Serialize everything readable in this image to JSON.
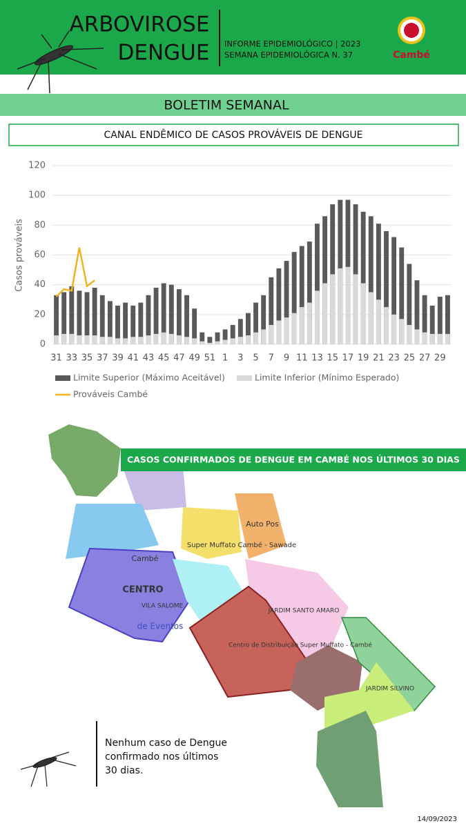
{
  "header": {
    "title_line1": "ARBOVIROSE",
    "title_line2": "DENGUE",
    "info_line1": "INFORME EPIDEMIOLÓGICO | 2023",
    "info_line2": "SEMANA EPIDEMIOLÓGICA  N. 37",
    "logo": "Cambé"
  },
  "banner": "BOLETIM SEMANAL",
  "chart_data": {
    "type": "bar",
    "title": "CANAL ENDÊMICO DE CASOS PROVÁVEIS DE DENGUE",
    "y_label": "Casos prováveis",
    "categories": [
      "31",
      null,
      "33",
      null,
      "35",
      null,
      "37",
      null,
      "39",
      null,
      "41",
      null,
      "43",
      null,
      "45",
      null,
      "47",
      null,
      "49",
      null,
      "51",
      null,
      "1",
      null,
      "3",
      null,
      "5",
      null,
      "7",
      null,
      "9",
      null,
      "11",
      null,
      "13",
      null,
      "15",
      null,
      "17",
      null,
      "19",
      null,
      "21",
      null,
      "23",
      null,
      "25",
      null,
      "27",
      null,
      "29",
      null
    ],
    "series": [
      {
        "name": "Limite Superior (Máximo Aceitável)",
        "type": "bar",
        "color": "#595959",
        "values": [
          33,
          35,
          39,
          36,
          35,
          38,
          33,
          29,
          26,
          28,
          26,
          28,
          33,
          38,
          41,
          40,
          37,
          33,
          24,
          8,
          5,
          8,
          10,
          13,
          17,
          21,
          28,
          33,
          45,
          51,
          56,
          62,
          66,
          69,
          81,
          86,
          94,
          97,
          97,
          94,
          89,
          86,
          81,
          76,
          72,
          65,
          54,
          43,
          33,
          26,
          32,
          33
        ]
      },
      {
        "name": "Limite Inferior (Mínimo Esperado)",
        "type": "bar",
        "color": "#d9d9d9",
        "values": [
          6,
          7,
          7,
          6,
          6,
          6,
          5,
          5,
          4,
          4,
          5,
          5,
          6,
          7,
          8,
          7,
          6,
          5,
          4,
          2,
          1,
          2,
          3,
          4,
          5,
          6,
          8,
          10,
          13,
          16,
          18,
          21,
          25,
          28,
          36,
          41,
          47,
          51,
          52,
          47,
          41,
          35,
          30,
          25,
          20,
          17,
          13,
          10,
          8,
          7,
          7,
          7
        ]
      },
      {
        "name": "Prováveis Cambé",
        "type": "line",
        "color": "#f0b323",
        "values": [
          32,
          37,
          36,
          65,
          39,
          43,
          null,
          null,
          null,
          null,
          null,
          null,
          null,
          null,
          null,
          null,
          null,
          null,
          null,
          null,
          null,
          null,
          null,
          null,
          null,
          null,
          null,
          null,
          null,
          null,
          null,
          null,
          null,
          null,
          null,
          null,
          null,
          null,
          null,
          null,
          null,
          null,
          null,
          null,
          null,
          null,
          null,
          null,
          null,
          null,
          null,
          null
        ]
      }
    ],
    "ylim": [
      0,
      120
    ],
    "yticks": [
      0,
      20,
      40,
      60,
      80,
      100,
      120
    ],
    "grid": true,
    "legend": "bottom"
  },
  "map": {
    "title": "CASOS CONFIRMADOS DE DENGUE EM CAMBÉ NOS ÚLTIMOS 30 DIAS",
    "labels": [
      "Cambé",
      "CENTRO",
      "VILA SALOME",
      "de Eventos",
      "Super Muffato Cambé - Sawade",
      "Auto Pos",
      "JARDIM SANTO AMARO",
      "Centro de Distribuição Super Muffato - Cambé",
      "JARDIM SILVINO"
    ]
  },
  "note": {
    "line1": "Nenhum caso de Dengue",
    "line2": "confirmado nos últimos",
    "line3": "30 dias."
  },
  "date": "14/09/2023"
}
